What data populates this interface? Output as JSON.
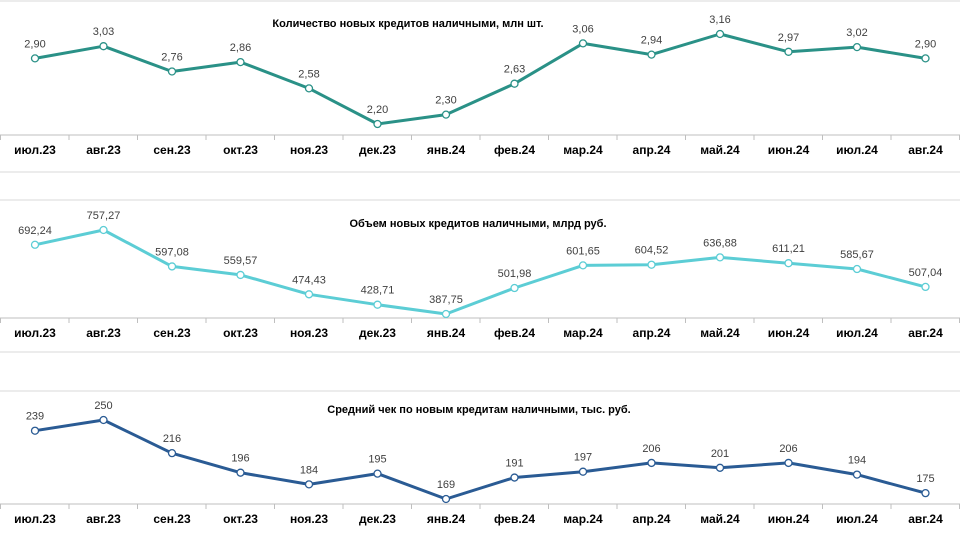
{
  "chart_data": [
    {
      "type": "line",
      "title": "Количество  новых  кредитов наличными,  млн шт.",
      "categories": [
        "июл.23",
        "авг.23",
        "сен.23",
        "окт.23",
        "ноя.23",
        "дек.23",
        "янв.24",
        "фев.24",
        "мар.24",
        "апр.24",
        "май.24",
        "июн.24",
        "июл.24",
        "авг.24"
      ],
      "values": [
        2.9,
        3.03,
        2.76,
        2.86,
        2.58,
        2.2,
        2.3,
        2.63,
        3.06,
        2.94,
        3.16,
        2.97,
        3.02,
        2.9
      ],
      "labels": [
        "2,90",
        "3,03",
        "2,76",
        "2,86",
        "2,58",
        "2,20",
        "2,30",
        "2,63",
        "3,06",
        "2,94",
        "3,16",
        "2,97",
        "3,02",
        "2,90"
      ],
      "color": "#2a9187",
      "grid": false,
      "legend": "none"
    },
    {
      "type": "line",
      "title": "Объем новых  кредитов  наличными,  млрд руб.",
      "categories": [
        "июл.23",
        "авг.23",
        "сен.23",
        "окт.23",
        "ноя.23",
        "дек.23",
        "янв.24",
        "фев.24",
        "мар.24",
        "апр.24",
        "май.24",
        "июн.24",
        "июл.24",
        "авг.24"
      ],
      "values": [
        692.24,
        757.27,
        597.08,
        559.57,
        474.43,
        428.71,
        387.75,
        501.98,
        601.65,
        604.52,
        636.88,
        611.21,
        585.67,
        507.04
      ],
      "labels": [
        "692,24",
        "757,27",
        "597,08",
        "559,57",
        "474,43",
        "428,71",
        "387,75",
        "501,98",
        "601,65",
        "604,52",
        "636,88",
        "611,21",
        "585,67",
        "507,04"
      ],
      "color": "#5ccdd5",
      "grid": false,
      "legend": "none"
    },
    {
      "type": "line",
      "title": "Средний чек по новым  кредитам  наличными,  тыс. руб.",
      "categories": [
        "июл.23",
        "авг.23",
        "сен.23",
        "окт.23",
        "ноя.23",
        "дек.23",
        "янв.24",
        "фев.24",
        "мар.24",
        "апр.24",
        "май.24",
        "июн.24",
        "июл.24",
        "авг.24"
      ],
      "values": [
        239,
        250,
        216,
        196,
        184,
        195,
        169,
        191,
        197,
        206,
        201,
        206,
        194,
        175
      ],
      "labels": [
        "239",
        "250",
        "216",
        "196",
        "184",
        "195",
        "169",
        "191",
        "197",
        "206",
        "201",
        "206",
        "194",
        "175"
      ],
      "color": "#2a5b94",
      "grid": false,
      "legend": "none"
    }
  ]
}
